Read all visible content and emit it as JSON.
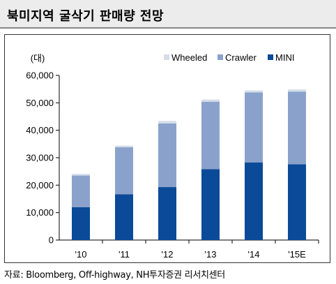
{
  "title": "북미지역 굴삭기 판매량 전망",
  "source": "자료: Bloomberg, Off-highway, NH투자증권 리서치센터",
  "chart_data": {
    "type": "bar",
    "stacked": true,
    "unit_label": "(대)",
    "categories": [
      "'10",
      "'11",
      "'12",
      "'13",
      "'14",
      "'15E"
    ],
    "ylim": [
      0,
      60000
    ],
    "yticks": [
      0,
      10000,
      20000,
      30000,
      40000,
      50000,
      60000
    ],
    "ytick_labels": [
      "0",
      "10,000",
      "20,000",
      "30,000",
      "40,000",
      "50,000",
      "60,000"
    ],
    "grid": false,
    "legend_position": "top-right",
    "legend_order": [
      "Wheeled",
      "Crawler",
      "MINI"
    ],
    "series": [
      {
        "name": "MINI",
        "color": "#0b4a99",
        "values": [
          12000,
          16700,
          19300,
          25800,
          28300,
          27600
        ]
      },
      {
        "name": "Crawler",
        "color": "#8aa2cb",
        "values": [
          11500,
          17100,
          23200,
          24600,
          25500,
          26500
        ]
      },
      {
        "name": "Wheeled",
        "color": "#d4dde9",
        "values": [
          600,
          600,
          900,
          800,
          700,
          800
        ]
      }
    ]
  }
}
